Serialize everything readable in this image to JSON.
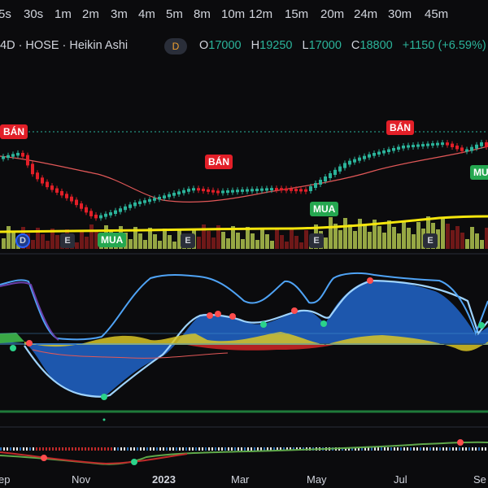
{
  "timeframes": [
    "5s",
    "30s",
    "1m",
    "2m",
    "3m",
    "4m",
    "5m",
    "8m",
    "10m",
    "12m",
    "15m",
    "20m",
    "24m",
    "30m",
    "45m"
  ],
  "symbol": {
    "title": "4D · HOSE · Heikin Ashi",
    "badge": "D"
  },
  "ohlc": {
    "o_label": "O",
    "o": "17000",
    "h_label": "H",
    "h": "19250",
    "l_label": "L",
    "l": "17000",
    "c_label": "C",
    "c": "18800",
    "change": "+1150 (+6.59%)"
  },
  "signals": {
    "sell": "BÁN",
    "buy": "MUA"
  },
  "events": {
    "dividend": "D",
    "earnings": "E"
  },
  "x_axis": [
    "ep",
    "Nov",
    "2023",
    "Mar",
    "May",
    "Jul",
    "Se"
  ],
  "colors": {
    "up": "#2bb39a",
    "down": "#e21f28",
    "volume_up": "#a5b84a",
    "volume_down": "#7a1a1a",
    "ma": "#f5e60c",
    "accent": "#2962ff"
  }
}
